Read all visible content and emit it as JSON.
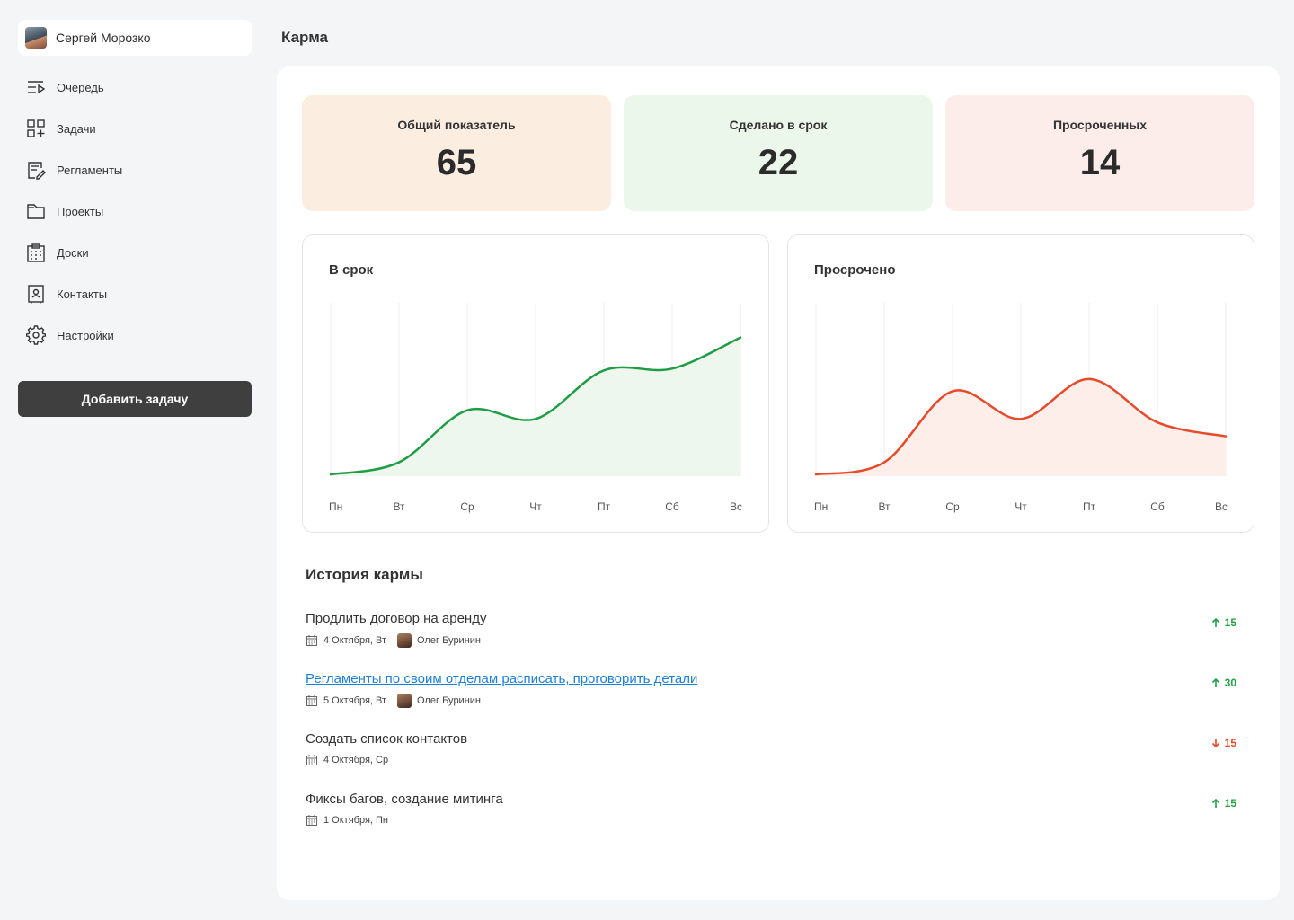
{
  "user": {
    "name": "Сергей Морозко"
  },
  "nav": [
    {
      "label": "Очередь",
      "icon": "queue-icon"
    },
    {
      "label": "Задачи",
      "icon": "tasks-icon"
    },
    {
      "label": "Регламенты",
      "icon": "regulations-icon"
    },
    {
      "label": "Проекты",
      "icon": "folder-icon"
    },
    {
      "label": "Доски",
      "icon": "board-icon"
    },
    {
      "label": "Контакты",
      "icon": "contacts-icon"
    },
    {
      "label": "Настройки",
      "icon": "gear-icon"
    }
  ],
  "add_task_label": "Добавить задачу",
  "page_title": "Карма",
  "stats": [
    {
      "label": "Общий показатель",
      "value": "65",
      "color": "#fbeee1"
    },
    {
      "label": "Сделано в  срок",
      "value": "22",
      "color": "#ebf7ea"
    },
    {
      "label": "Просроченных",
      "value": "14",
      "color": "#fcedeb"
    }
  ],
  "chart_data": [
    {
      "type": "area",
      "title": "В срок",
      "categories": [
        "Пн",
        "Вт",
        "Ср",
        "Чт",
        "Пт",
        "Сб",
        "Вс"
      ],
      "values": [
        1,
        8,
        38,
        33,
        61,
        62,
        80
      ],
      "ylim": [
        0,
        100
      ],
      "color": "#1f9d44",
      "fill": "#edf7ee",
      "grid": true
    },
    {
      "type": "area",
      "title": "Просрочено",
      "categories": [
        "Пн",
        "Вт",
        "Ср",
        "Чт",
        "Пт",
        "Сб",
        "Вс"
      ],
      "values": [
        1,
        8,
        49,
        33,
        56,
        31,
        23
      ],
      "ylim": [
        0,
        100
      ],
      "color": "#e8492a",
      "fill": "#fdeeea",
      "grid": true
    }
  ],
  "history_title": "История кармы",
  "history": [
    {
      "name": "Продлить договор на аренду",
      "date": "4 Октября, Вт",
      "person": "Олег Буринин",
      "score": "15",
      "direction": "up",
      "link": false
    },
    {
      "name": "Регламенты по своим отделам расписать, проговорить детали",
      "date": "5 Октября, Вт",
      "person": "Олег Буринин",
      "score": "30",
      "direction": "up",
      "link": true
    },
    {
      "name": "Создать список контактов",
      "date": "4 Октября, Ср",
      "person": "",
      "score": "15",
      "direction": "down",
      "link": false
    },
    {
      "name": "Фиксы багов, создание митинга",
      "date": "1 Октября, Пн",
      "person": "",
      "score": "15",
      "direction": "up",
      "link": false
    }
  ]
}
